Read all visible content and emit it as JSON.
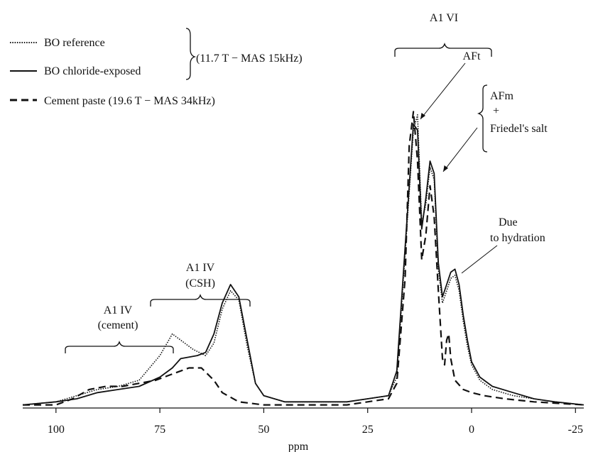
{
  "chart_data": {
    "type": "line",
    "xlabel": "ppm",
    "ylabel": "",
    "xlim": [
      108,
      -27
    ],
    "x_reversed": true,
    "ylim": [
      0,
      1
    ],
    "grid": false,
    "legend_position": "top-left",
    "x_ticks": [
      {
        "value": 100,
        "label": "100"
      },
      {
        "value": 75,
        "label": "75"
      },
      {
        "value": 50,
        "label": "50"
      },
      {
        "value": 25,
        "label": "25"
      },
      {
        "value": 0,
        "label": "0"
      },
      {
        "value": -25,
        "label": "-25"
      }
    ],
    "legend": {
      "items": [
        {
          "label": "BO reference",
          "style": "dotted"
        },
        {
          "label": "BO chloride-exposed",
          "style": "solid"
        },
        {
          "label": "Cement paste (19.6 T − MAS 34kHz)",
          "style": "dashed"
        }
      ],
      "group_label": "(11.7 T − MAS 15kHz)"
    },
    "annotations": {
      "al_vi": "A1 VI",
      "aft": "AFt",
      "afm": "AFm",
      "plus": "+",
      "friedel": "Friedel's salt",
      "due": "Due",
      "to_hydration": "to hydration",
      "al_iv_csh_1": "A1 IV",
      "al_iv_csh_2": "(CSH)",
      "al_iv_cem_1": "A1 IV",
      "al_iv_cem_2": "(cement)"
    },
    "series": [
      {
        "name": "BO reference",
        "style": "dotted",
        "points": [
          [
            108,
            0.01
          ],
          [
            100,
            0.02
          ],
          [
            95,
            0.04
          ],
          [
            90,
            0.06
          ],
          [
            85,
            0.07
          ],
          [
            80,
            0.09
          ],
          [
            75,
            0.17
          ],
          [
            72,
            0.24
          ],
          [
            70,
            0.22
          ],
          [
            67,
            0.19
          ],
          [
            64,
            0.17
          ],
          [
            62,
            0.21
          ],
          [
            60,
            0.32
          ],
          [
            58,
            0.38
          ],
          [
            56,
            0.35
          ],
          [
            54,
            0.2
          ],
          [
            52,
            0.08
          ],
          [
            50,
            0.04
          ],
          [
            45,
            0.02
          ],
          [
            40,
            0.02
          ],
          [
            30,
            0.02
          ],
          [
            25,
            0.03
          ],
          [
            20,
            0.04
          ],
          [
            18,
            0.1
          ],
          [
            16,
            0.5
          ],
          [
            14,
            0.9
          ],
          [
            13,
            0.95
          ],
          [
            12,
            0.6
          ],
          [
            11,
            0.66
          ],
          [
            10,
            0.78
          ],
          [
            9,
            0.74
          ],
          [
            8,
            0.45
          ],
          [
            7,
            0.34
          ],
          [
            6,
            0.38
          ],
          [
            5,
            0.42
          ],
          [
            4,
            0.43
          ],
          [
            3,
            0.38
          ],
          [
            2,
            0.28
          ],
          [
            1,
            0.2
          ],
          [
            0,
            0.14
          ],
          [
            -2,
            0.09
          ],
          [
            -5,
            0.06
          ],
          [
            -10,
            0.04
          ],
          [
            -15,
            0.03
          ],
          [
            -20,
            0.02
          ],
          [
            -27,
            0.01
          ]
        ]
      },
      {
        "name": "BO chloride-exposed",
        "style": "solid",
        "points": [
          [
            108,
            0.01
          ],
          [
            100,
            0.02
          ],
          [
            95,
            0.03
          ],
          [
            90,
            0.05
          ],
          [
            85,
            0.06
          ],
          [
            80,
            0.07
          ],
          [
            75,
            0.1
          ],
          [
            72,
            0.13
          ],
          [
            70,
            0.16
          ],
          [
            66,
            0.17
          ],
          [
            64,
            0.18
          ],
          [
            62,
            0.24
          ],
          [
            60,
            0.34
          ],
          [
            58,
            0.4
          ],
          [
            56,
            0.36
          ],
          [
            54,
            0.22
          ],
          [
            52,
            0.08
          ],
          [
            50,
            0.04
          ],
          [
            45,
            0.02
          ],
          [
            40,
            0.02
          ],
          [
            30,
            0.02
          ],
          [
            25,
            0.03
          ],
          [
            20,
            0.04
          ],
          [
            18,
            0.12
          ],
          [
            16,
            0.52
          ],
          [
            14,
            0.92
          ],
          [
            13,
            0.9
          ],
          [
            12,
            0.58
          ],
          [
            11,
            0.68
          ],
          [
            10,
            0.8
          ],
          [
            9,
            0.76
          ],
          [
            8,
            0.47
          ],
          [
            7,
            0.36
          ],
          [
            6,
            0.4
          ],
          [
            5,
            0.44
          ],
          [
            4,
            0.45
          ],
          [
            3,
            0.4
          ],
          [
            2,
            0.3
          ],
          [
            1,
            0.22
          ],
          [
            0,
            0.15
          ],
          [
            -2,
            0.1
          ],
          [
            -5,
            0.07
          ],
          [
            -10,
            0.05
          ],
          [
            -15,
            0.03
          ],
          [
            -20,
            0.02
          ],
          [
            -27,
            0.01
          ]
        ]
      },
      {
        "name": "Cement paste",
        "style": "dashed",
        "points": [
          [
            108,
            0.01
          ],
          [
            100,
            0.01
          ],
          [
            96,
            0.03
          ],
          [
            92,
            0.06
          ],
          [
            88,
            0.07
          ],
          [
            84,
            0.07
          ],
          [
            80,
            0.08
          ],
          [
            76,
            0.09
          ],
          [
            72,
            0.11
          ],
          [
            68,
            0.13
          ],
          [
            65,
            0.13
          ],
          [
            62,
            0.09
          ],
          [
            60,
            0.05
          ],
          [
            56,
            0.02
          ],
          [
            50,
            0.01
          ],
          [
            40,
            0.01
          ],
          [
            30,
            0.01
          ],
          [
            25,
            0.02
          ],
          [
            20,
            0.03
          ],
          [
            18,
            0.08
          ],
          [
            16,
            0.42
          ],
          [
            15,
            0.85
          ],
          [
            14,
            0.96
          ],
          [
            13,
            0.8
          ],
          [
            12,
            0.48
          ],
          [
            11,
            0.56
          ],
          [
            10,
            0.72
          ],
          [
            9,
            0.62
          ],
          [
            8,
            0.38
          ],
          [
            7,
            0.16
          ],
          [
            6.5,
            0.14
          ],
          [
            6,
            0.22
          ],
          [
            5.5,
            0.24
          ],
          [
            5,
            0.16
          ],
          [
            4,
            0.09
          ],
          [
            2,
            0.06
          ],
          [
            0,
            0.05
          ],
          [
            -3,
            0.04
          ],
          [
            -8,
            0.03
          ],
          [
            -15,
            0.02
          ],
          [
            -27,
            0.01
          ]
        ]
      }
    ]
  }
}
